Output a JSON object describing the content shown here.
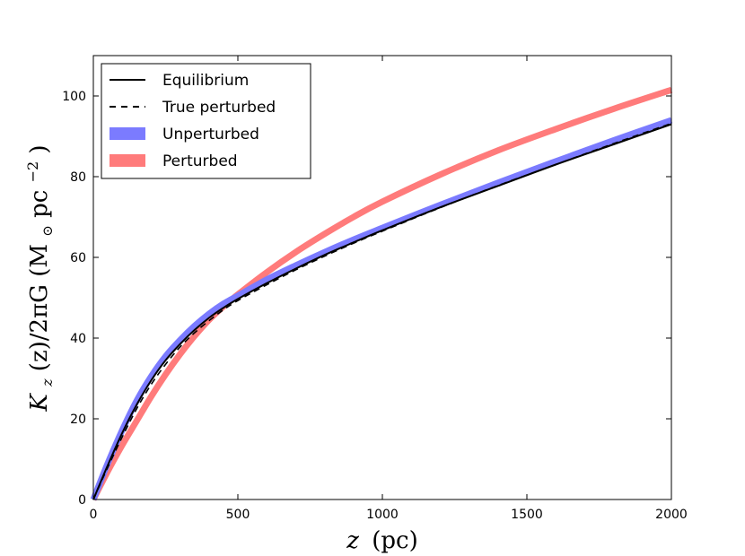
{
  "chart_data": {
    "type": "line",
    "xlabel_var": "z",
    "xlabel_unit": "(pc)",
    "ylabel_main": "K",
    "ylabel_sub": "z",
    "ylabel_rest": "(z)/2πG (M",
    "ylabel_sun": "⊙",
    "ylabel_unit": " pc",
    "ylabel_exp": "−2",
    "ylabel_close": ")",
    "xlim": [
      0,
      2000
    ],
    "ylim": [
      0,
      110
    ],
    "xticks": [
      0,
      500,
      1000,
      1500,
      2000
    ],
    "yticks": [
      0,
      20,
      40,
      60,
      80,
      100
    ],
    "legend_position": "top-left",
    "x": [
      0,
      50,
      100,
      150,
      200,
      250,
      300,
      350,
      400,
      450,
      500,
      600,
      700,
      800,
      900,
      1000,
      1200,
      1400,
      1600,
      1800,
      2000
    ],
    "series": [
      {
        "name": "Equilibrium",
        "style": "solid",
        "color": "#000000",
        "values": [
          0,
          8.5,
          16.5,
          23.5,
          29.5,
          34.5,
          38.5,
          42,
          45,
          47.5,
          49.7,
          53.6,
          57.2,
          60.6,
          63.7,
          66.7,
          72.4,
          77.7,
          83.0,
          88.0,
          93.0
        ]
      },
      {
        "name": "True perturbed",
        "style": "dashed",
        "color": "#000000",
        "values": [
          0,
          8.0,
          15.5,
          22.5,
          28.5,
          33.5,
          37.8,
          41.3,
          44.3,
          47.0,
          49.3,
          53.2,
          56.9,
          60.3,
          63.5,
          66.5,
          72.3,
          77.8,
          83.0,
          88.2,
          93.2
        ]
      },
      {
        "name": "Unperturbed",
        "style": "band",
        "color": "#7b7bff",
        "values": [
          0,
          9.0,
          17.2,
          24.5,
          30.5,
          35.5,
          39.5,
          43,
          46,
          48.5,
          50.5,
          54.5,
          58.0,
          61.3,
          64.4,
          67.3,
          73.0,
          78.5,
          83.8,
          89.0,
          94.0
        ]
      },
      {
        "name": "Perturbed",
        "style": "band",
        "color": "#ff7b7b",
        "values": [
          0,
          7.0,
          13.5,
          19.5,
          25.5,
          31.0,
          36.0,
          40.5,
          44.5,
          47.8,
          50.8,
          56.3,
          61.3,
          65.8,
          70.0,
          73.8,
          80.5,
          86.5,
          91.8,
          96.8,
          101.5
        ]
      }
    ]
  }
}
